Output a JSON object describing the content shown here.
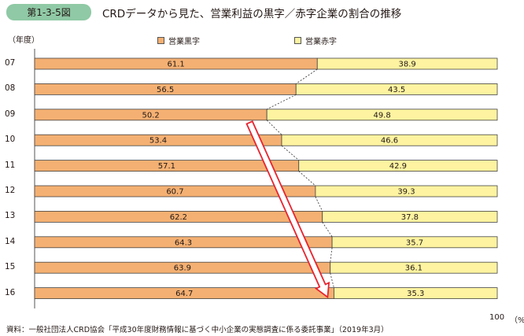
{
  "header": {
    "figure_number": "第1-3-5図",
    "title": "CRDデータから見た、営業利益の黒字／赤字企業の割合の推移"
  },
  "axis": {
    "year_unit": "（年度）",
    "x_max_label": "100",
    "x_unit": "（%）"
  },
  "footer": {
    "source": "資料：一般社団法人CRD協会「平成30年度財務情報に基づく中小企業の実態調査に係る委託事業」（2019年3月）"
  },
  "colors": {
    "profit": "#f4b072",
    "loss": "#fdf3a0",
    "arrow": "#e8242f",
    "badge": "#8fc9a5"
  },
  "chart_data": {
    "type": "bar",
    "orientation": "horizontal",
    "stacked": true,
    "categories": [
      "07",
      "08",
      "09",
      "10",
      "11",
      "12",
      "13",
      "14",
      "15",
      "16"
    ],
    "series": [
      {
        "name": "営業黒字",
        "values": [
          61.1,
          56.5,
          50.2,
          53.4,
          57.1,
          60.7,
          62.2,
          64.3,
          63.9,
          64.7
        ]
      },
      {
        "name": "営業赤字",
        "values": [
          38.9,
          43.5,
          49.8,
          46.6,
          42.9,
          39.3,
          37.8,
          35.7,
          36.1,
          35.3
        ]
      }
    ],
    "xlim": [
      0,
      100
    ],
    "ylabel": "（年度）",
    "xlabel": "（%）",
    "legend": "top",
    "grid": false,
    "annotations": [
      "arrow from 09 to 16 along profit boundary",
      "dashed connectors between bar boundaries"
    ]
  }
}
